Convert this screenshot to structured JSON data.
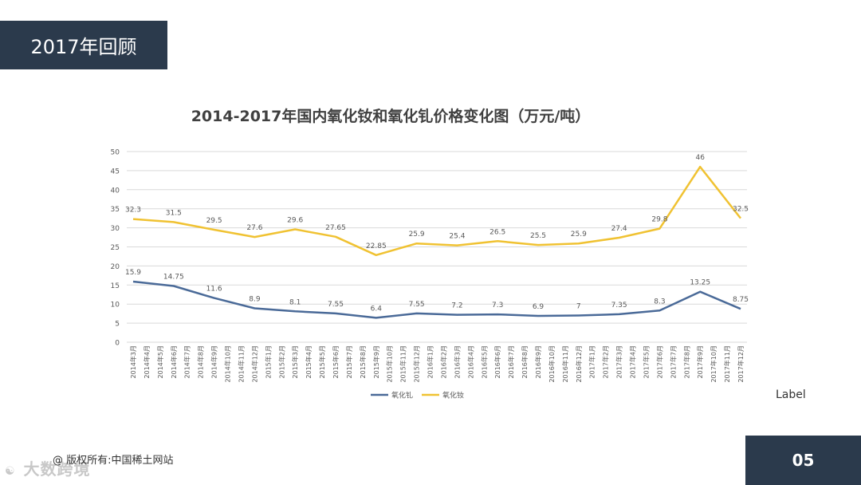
{
  "header": {
    "title": "2017年回顾"
  },
  "footer": {
    "copyright": "@ 版权所有:中国稀土网站",
    "page_number": "05",
    "watermark": "大数跨境",
    "side_label": "Label"
  },
  "colors": {
    "dark_box": "#2b3a4c",
    "gd_line": "#4a6a98",
    "nd_line": "#f0c232",
    "grid": "#d9d9d9"
  },
  "chart_data": {
    "type": "line",
    "title": "2014-2017年国内氧化钕和氧化钆价格变化图（万元/吨）",
    "categories": [
      "2014年3月",
      "2014年4月",
      "2014年5月",
      "2014年6月",
      "2014年7月",
      "2014年8月",
      "2014年9月",
      "2014年10月",
      "2014年11月",
      "2014年12月",
      "2015年1月",
      "2015年2月",
      "2015年3月",
      "2015年4月",
      "2015年5月",
      "2015年6月",
      "2015年7月",
      "2015年8月",
      "2015年9月",
      "2015年10月",
      "2015年11月",
      "2015年12月",
      "2016年1月",
      "2016年2月",
      "2016年3月",
      "2016年4月",
      "2016年5月",
      "2016年6月",
      "2016年7月",
      "2016年8月",
      "2016年9月",
      "2016年10月",
      "2016年11月",
      "2016年12月",
      "2017年1月",
      "2017年2月",
      "2017年3月",
      "2017年4月",
      "2017年5月",
      "2017年6月",
      "2017年7月",
      "2017年8月",
      "2017年9月",
      "2017年10月",
      "2017年11月",
      "2017年12月"
    ],
    "ylim": [
      0,
      50
    ],
    "yticks": [
      "0",
      "5",
      "10",
      "15",
      "20",
      "25",
      "30",
      "35",
      "40",
      "45",
      "50"
    ],
    "grid": true,
    "legend_position": "bottom",
    "series": [
      {
        "name": "氧化钆",
        "color": "#4a6a98",
        "points": [
          [
            0,
            15.9
          ],
          [
            3,
            14.75
          ],
          [
            6,
            11.6
          ],
          [
            9,
            8.9
          ],
          [
            12,
            8.1
          ],
          [
            15,
            7.55
          ],
          [
            18,
            6.4
          ],
          [
            21,
            7.55
          ],
          [
            24,
            7.2
          ],
          [
            27,
            7.3
          ],
          [
            30,
            6.9
          ],
          [
            33,
            7
          ],
          [
            36,
            7.35
          ],
          [
            39,
            8.3
          ],
          [
            42,
            13.25
          ],
          [
            45,
            8.75
          ]
        ],
        "labels": [
          "15.9",
          "14.75",
          "11.6",
          "8.9",
          "8.1",
          "7.55",
          "6.4",
          "7.55",
          "7.2",
          "7.3",
          "6.9",
          "7",
          "7.35",
          "8.3",
          "13.25",
          "8.75"
        ]
      },
      {
        "name": "氧化钕",
        "color": "#f0c232",
        "points": [
          [
            0,
            32.3
          ],
          [
            3,
            31.5
          ],
          [
            6,
            29.5
          ],
          [
            9,
            27.6
          ],
          [
            12,
            29.6
          ],
          [
            15,
            27.65
          ],
          [
            18,
            22.85
          ],
          [
            21,
            25.9
          ],
          [
            24,
            25.4
          ],
          [
            27,
            26.5
          ],
          [
            30,
            25.5
          ],
          [
            33,
            25.9
          ],
          [
            36,
            27.4
          ],
          [
            39,
            29.8
          ],
          [
            42,
            46
          ],
          [
            45,
            32.5
          ]
        ],
        "labels": [
          "32.3",
          "31.5",
          "29.5",
          "27.6",
          "29.6",
          "27.65",
          "22.85",
          "25.9",
          "25.4",
          "26.5",
          "25.5",
          "25.9",
          "27.4",
          "29.8",
          "46",
          "32.5"
        ]
      }
    ]
  }
}
